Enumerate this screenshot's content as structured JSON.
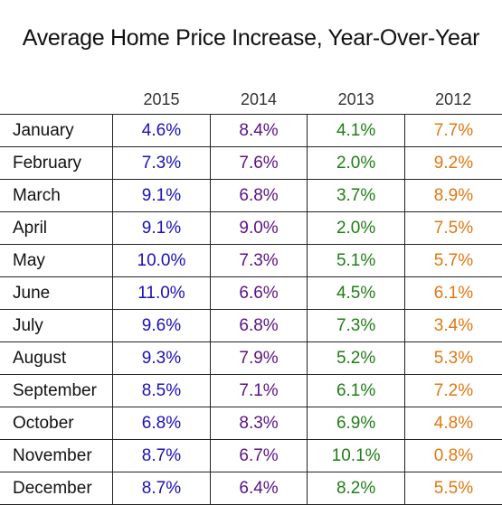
{
  "title": "Average Home Price Increase, Year-Over-Year",
  "colors": {
    "2015": "#1a10b8",
    "2014": "#5a1282",
    "2013": "#1f7d14",
    "2012": "#e07812"
  },
  "chart_data": {
    "type": "table",
    "title": "Average Home Price Increase, Year-Over-Year",
    "columns": [
      "2015",
      "2014",
      "2013",
      "2012"
    ],
    "rows": [
      {
        "month": "January",
        "values": [
          "4.6%",
          "8.4%",
          "4.1%",
          "7.7%"
        ]
      },
      {
        "month": "February",
        "values": [
          "7.3%",
          "7.6%",
          "2.0%",
          "9.2%"
        ]
      },
      {
        "month": "March",
        "values": [
          "9.1%",
          "6.8%",
          "3.7%",
          "8.9%"
        ]
      },
      {
        "month": "April",
        "values": [
          "9.1%",
          "9.0%",
          "2.0%",
          "7.5%"
        ]
      },
      {
        "month": "May",
        "values": [
          "10.0%",
          "7.3%",
          "5.1%",
          "5.7%"
        ]
      },
      {
        "month": "June",
        "values": [
          "11.0%",
          "6.6%",
          "4.5%",
          "6.1%"
        ]
      },
      {
        "month": "July",
        "values": [
          "9.6%",
          "6.8%",
          "7.3%",
          "3.4%"
        ]
      },
      {
        "month": "August",
        "values": [
          "9.3%",
          "7.9%",
          "5.2%",
          "5.3%"
        ]
      },
      {
        "month": "September",
        "values": [
          "8.5%",
          "7.1%",
          "6.1%",
          "7.2%"
        ]
      },
      {
        "month": "October",
        "values": [
          "6.8%",
          "8.3%",
          "6.9%",
          "4.8%"
        ]
      },
      {
        "month": "November",
        "values": [
          "8.7%",
          "6.7%",
          "10.1%",
          "0.8%"
        ]
      },
      {
        "month": "December",
        "values": [
          "8.7%",
          "6.4%",
          "8.2%",
          "5.5%"
        ]
      }
    ]
  }
}
